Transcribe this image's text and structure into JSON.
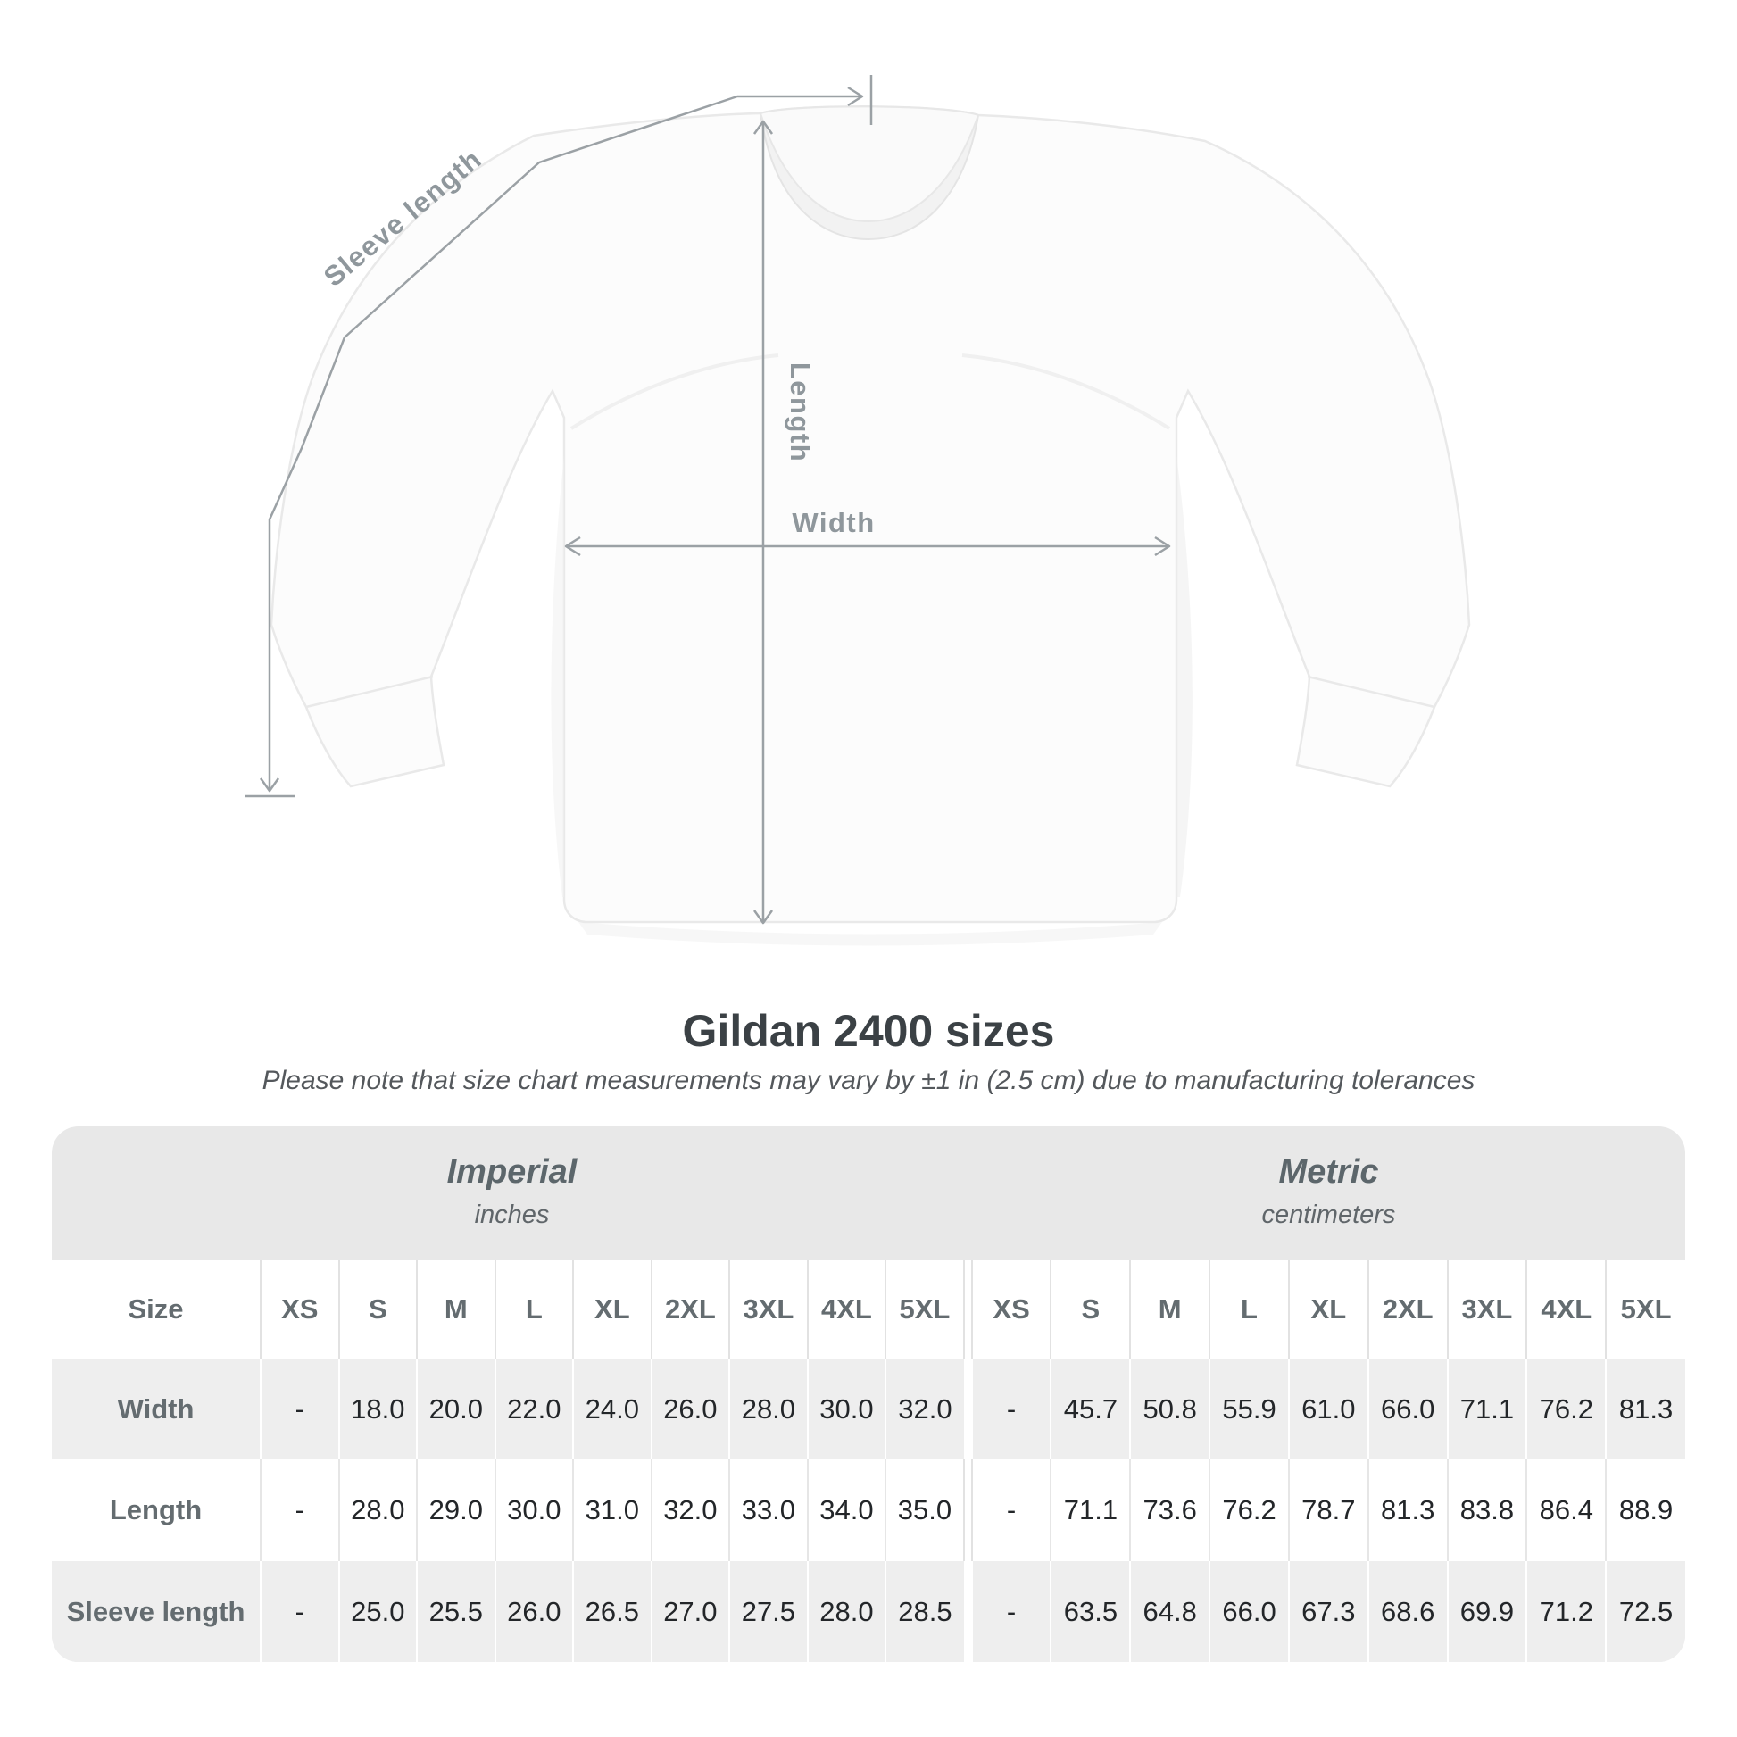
{
  "title": "Gildan 2400 sizes",
  "note": "Please note that size chart measurements may vary by ±1 in (2.5 cm) due to manufacturing tolerances",
  "diagram": {
    "labels": {
      "sleeve_length": "Sleeve length",
      "length": "Length",
      "width": "Width"
    },
    "line_color": "#9ba1a5",
    "label_color": "#8f979c",
    "shirt_color": "#fcfcfc"
  },
  "table": {
    "size_label": "Size",
    "sizes": [
      "XS",
      "S",
      "M",
      "L",
      "XL",
      "2XL",
      "3XL",
      "4XL",
      "5XL"
    ],
    "sections": [
      {
        "label": "Imperial",
        "sublabel": "inches"
      },
      {
        "label": "Metric",
        "sublabel": "centimeters"
      }
    ],
    "rows": [
      {
        "label": "Width",
        "imperial": [
          "-",
          "18.0",
          "20.0",
          "22.0",
          "24.0",
          "26.0",
          "28.0",
          "30.0",
          "32.0"
        ],
        "metric": [
          "-",
          "45.7",
          "50.8",
          "55.9",
          "61.0",
          "66.0",
          "71.1",
          "76.2",
          "81.3"
        ]
      },
      {
        "label": "Length",
        "imperial": [
          "-",
          "28.0",
          "29.0",
          "30.0",
          "31.0",
          "32.0",
          "33.0",
          "34.0",
          "35.0"
        ],
        "metric": [
          "-",
          "71.1",
          "73.6",
          "76.2",
          "78.7",
          "81.3",
          "83.8",
          "86.4",
          "88.9"
        ]
      },
      {
        "label": "Sleeve length",
        "imperial": [
          "-",
          "25.0",
          "25.5",
          "26.0",
          "26.5",
          "27.0",
          "27.5",
          "28.0",
          "28.5"
        ],
        "metric": [
          "-",
          "63.5",
          "64.8",
          "66.0",
          "67.3",
          "68.6",
          "69.9",
          "71.2",
          "72.5"
        ]
      }
    ]
  },
  "chart_data": {
    "type": "table",
    "title": "Gildan 2400 sizes",
    "note": "Please note that size chart measurements may vary by ±1 in (2.5 cm) due to manufacturing tolerances",
    "column_groups": [
      {
        "label": "Imperial",
        "unit": "inches",
        "columns": [
          "XS",
          "S",
          "M",
          "L",
          "XL",
          "2XL",
          "3XL",
          "4XL",
          "5XL"
        ]
      },
      {
        "label": "Metric",
        "unit": "centimeters",
        "columns": [
          "XS",
          "S",
          "M",
          "L",
          "XL",
          "2XL",
          "3XL",
          "4XL",
          "5XL"
        ]
      }
    ],
    "rows": [
      {
        "measurement": "Width",
        "imperial_in": [
          null,
          18.0,
          20.0,
          22.0,
          24.0,
          26.0,
          28.0,
          30.0,
          32.0
        ],
        "metric_cm": [
          null,
          45.7,
          50.8,
          55.9,
          61.0,
          66.0,
          71.1,
          76.2,
          81.3
        ]
      },
      {
        "measurement": "Length",
        "imperial_in": [
          null,
          28.0,
          29.0,
          30.0,
          31.0,
          32.0,
          33.0,
          34.0,
          35.0
        ],
        "metric_cm": [
          null,
          71.1,
          73.6,
          76.2,
          78.7,
          81.3,
          83.8,
          86.4,
          88.9
        ]
      },
      {
        "measurement": "Sleeve length",
        "imperial_in": [
          null,
          25.0,
          25.5,
          26.0,
          26.5,
          27.0,
          27.5,
          28.0,
          28.5
        ],
        "metric_cm": [
          null,
          63.5,
          64.8,
          66.0,
          67.3,
          68.6,
          69.9,
          71.2,
          72.5
        ]
      }
    ]
  }
}
